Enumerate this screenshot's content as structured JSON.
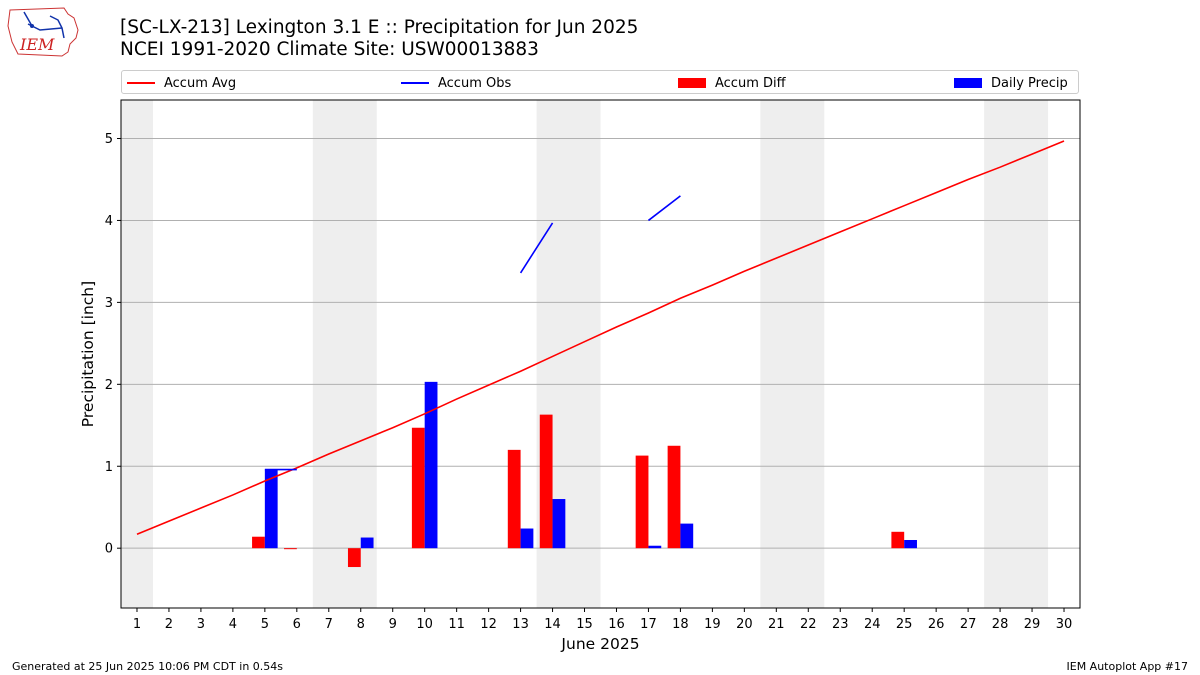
{
  "header": {
    "title_line1": "[SC-LX-213] Lexington 3.1 E :: Precipitation for Jun 2025",
    "title_line2": "NCEI 1991-2020 Climate Site: USW00013883",
    "logo_text": "IEM"
  },
  "footer": {
    "generated": "Generated at 25 Jun 2025 10:06 PM CDT in 0.54s",
    "app": "IEM Autoplot App #17"
  },
  "colors": {
    "accum_avg": "#ff0000",
    "accum_obs": "#0000ff",
    "accum_diff": "#ff0000",
    "daily_precip": "#0000ff",
    "weekend_shade": "#eeeeee",
    "grid": "#b0b0b0"
  },
  "chart_data": {
    "type": "bar",
    "xlabel": "June 2025",
    "ylabel": "Precipitation [inch]",
    "xlim": [
      0.5,
      30.5
    ],
    "ylim": [
      -0.73,
      5.47
    ],
    "yticks": [
      0,
      1,
      2,
      3,
      4,
      5
    ],
    "grid": "horizontal",
    "legend_placement": "top",
    "days": [
      1,
      2,
      3,
      4,
      5,
      6,
      7,
      8,
      9,
      10,
      11,
      12,
      13,
      14,
      15,
      16,
      17,
      18,
      19,
      20,
      21,
      22,
      23,
      24,
      25,
      26,
      27,
      28,
      29,
      30
    ],
    "weekend_spans": [
      [
        0.5,
        1.5
      ],
      [
        6.5,
        8.5
      ],
      [
        13.5,
        15.5
      ],
      [
        20.5,
        22.5
      ],
      [
        27.5,
        29.5
      ]
    ],
    "legend": [
      {
        "label": "Accum Avg",
        "kind": "line",
        "color": "#ff0000"
      },
      {
        "label": "Accum Obs",
        "kind": "line",
        "color": "#0000ff"
      },
      {
        "label": "Accum Diff",
        "kind": "bar",
        "color": "#ff0000"
      },
      {
        "label": "Daily Precip",
        "kind": "bar",
        "color": "#0000ff"
      }
    ],
    "series": [
      {
        "name": "Accum Avg",
        "type": "line",
        "x": [
          1,
          2,
          3,
          4,
          5,
          6,
          7,
          8,
          9,
          10,
          11,
          12,
          13,
          14,
          15,
          16,
          17,
          18,
          19,
          20,
          21,
          22,
          23,
          24,
          25,
          26,
          27,
          28,
          29,
          30
        ],
        "values": [
          0.17,
          0.33,
          0.49,
          0.65,
          0.82,
          0.98,
          1.15,
          1.31,
          1.47,
          1.64,
          1.82,
          1.99,
          2.16,
          2.34,
          2.52,
          2.7,
          2.87,
          3.05,
          3.21,
          3.38,
          3.54,
          3.7,
          3.86,
          4.02,
          4.18,
          4.34,
          4.5,
          4.65,
          4.81,
          4.97
        ]
      },
      {
        "name": "Accum Obs",
        "type": "line",
        "segments": [
          {
            "x": [
              5,
              6
            ],
            "values": [
              0.96,
              0.96
            ]
          },
          {
            "x": [
              13,
              14
            ],
            "values": [
              3.36,
              3.97
            ]
          },
          {
            "x": [
              17,
              18
            ],
            "values": [
              4.0,
              4.3
            ]
          }
        ]
      },
      {
        "name": "Accum Diff",
        "type": "bar",
        "x": [
          5,
          6,
          8,
          10,
          13,
          14,
          17,
          18,
          25
        ],
        "values": [
          0.14,
          -0.01,
          -0.23,
          1.47,
          1.2,
          1.63,
          1.13,
          1.25,
          0.2
        ]
      },
      {
        "name": "Daily Precip",
        "type": "bar",
        "x": [
          5,
          8,
          10,
          13,
          14,
          17,
          18,
          25
        ],
        "values": [
          0.96,
          0.13,
          2.03,
          0.24,
          0.6,
          0.03,
          0.3,
          0.1
        ]
      }
    ]
  }
}
